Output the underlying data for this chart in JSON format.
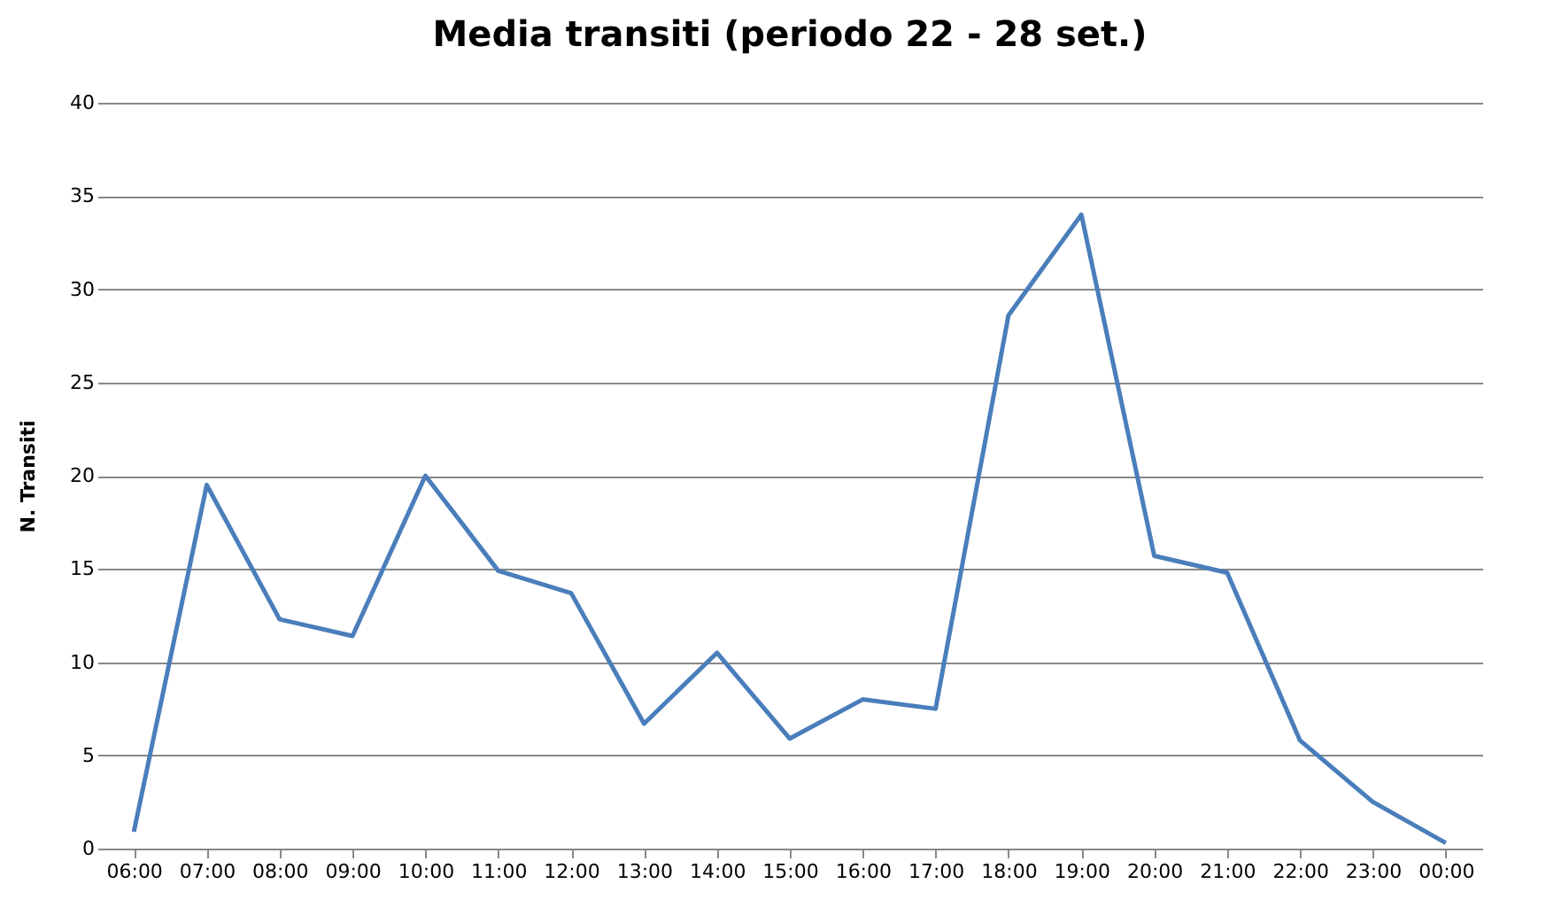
{
  "chart_data": {
    "type": "line",
    "title": "Media transiti (periodo 22 - 28 set.)",
    "ylabel": "N. Transiti",
    "categories": [
      "06:00",
      "07:00",
      "08:00",
      "09:00",
      "10:00",
      "11:00",
      "12:00",
      "13:00",
      "14:00",
      "15:00",
      "16:00",
      "17:00",
      "18:00",
      "19:00",
      "20:00",
      "21:00",
      "22:00",
      "23:00",
      "00:00"
    ],
    "series": [
      {
        "color": "#4a7ebb",
        "values": [
          0.9,
          19.5,
          12.3,
          11.4,
          20.0,
          14.9,
          13.7,
          6.7,
          10.5,
          5.9,
          8.0,
          7.5,
          28.6,
          34.0,
          15.7,
          14.8,
          5.8,
          2.5,
          0.3
        ]
      }
    ],
    "ylim": [
      0,
      40
    ],
    "yticks": [
      0,
      5,
      10,
      15,
      20,
      25,
      30,
      35,
      40
    ],
    "grid": "y",
    "legend": false,
    "marker": "none",
    "line_style": "solid"
  }
}
